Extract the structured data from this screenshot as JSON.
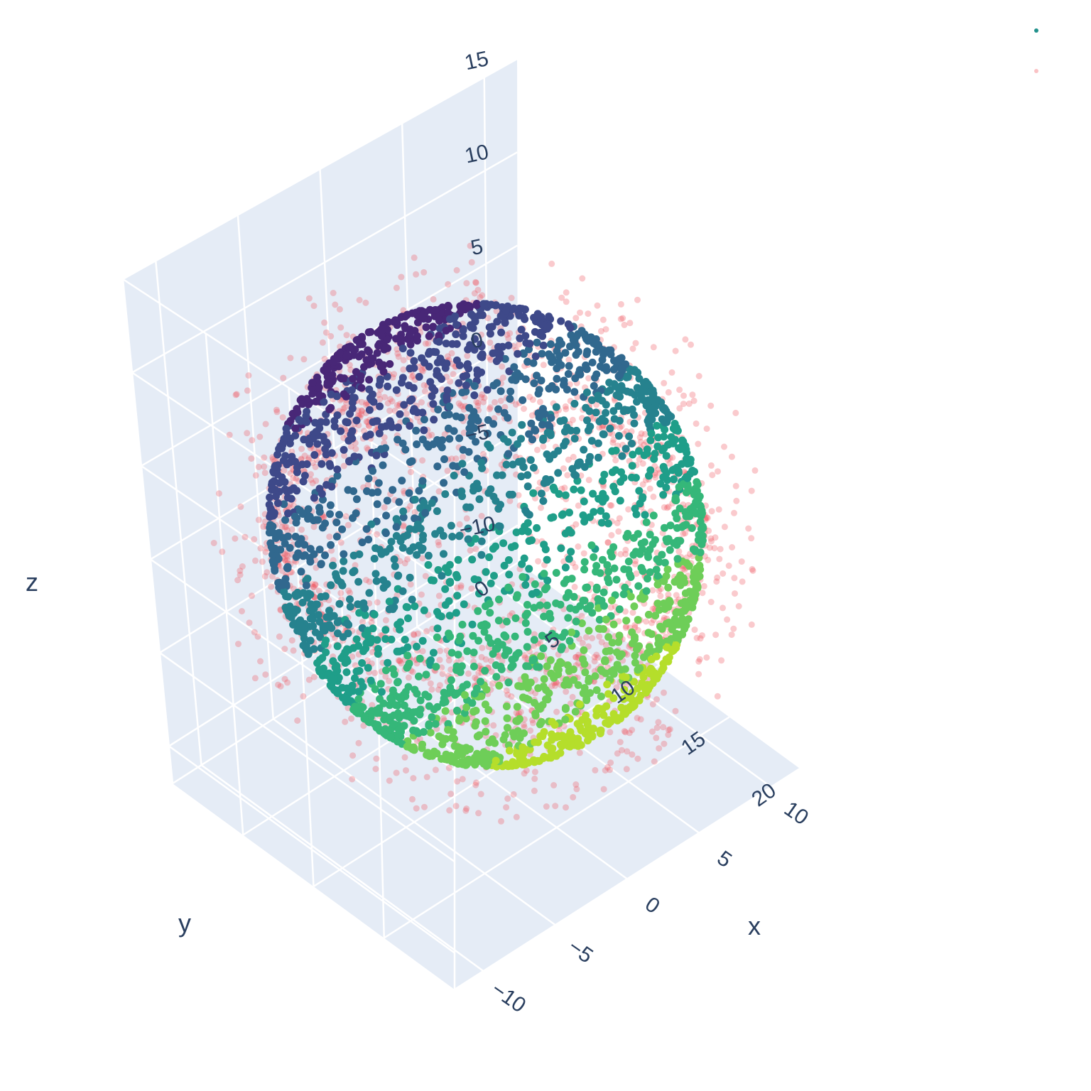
{
  "chart_data": {
    "type": "scatter",
    "projection": "3d",
    "title": "",
    "axes": {
      "x": {
        "title": "x",
        "range": [
          -12,
          12
        ],
        "ticks": [
          -10,
          -5,
          0,
          5,
          10
        ],
        "tick_labels": [
          "−10",
          "−5",
          "0",
          "5",
          "10"
        ]
      },
      "y": {
        "title": "y",
        "range": [
          0,
          20
        ],
        "ticks": [
          0,
          5,
          10,
          15,
          20
        ],
        "tick_labels": [
          "0",
          "5",
          "10",
          "15",
          "20"
        ]
      },
      "z": {
        "title": "z",
        "range": [
          -12,
          15
        ],
        "ticks": [
          -10,
          -5,
          0,
          5,
          10,
          15
        ],
        "tick_labels": [
          "−10",
          "−5",
          "0",
          "5",
          "10",
          "15"
        ]
      }
    },
    "grid": true,
    "background_color": "#e5ecf6",
    "legend_position": "top-right",
    "series": [
      {
        "marker_color": "#21918c",
        "colorscale": "viridis",
        "opacity": 1.0,
        "shape": "sphere",
        "center": {
          "x": 0,
          "y": 10,
          "z": 1
        },
        "radius": 10,
        "approx_points": 2600
      },
      {
        "marker_color": "#f0505a",
        "opacity": 0.3,
        "shape": "scattered shell with dense band",
        "center": {
          "x": 0,
          "y": 10,
          "z": 1
        },
        "radius_range": [
          8,
          13
        ],
        "approx_points": 1800
      }
    ]
  },
  "legend": {
    "items": [
      {
        "color": "#21918c",
        "opacity": 1.0
      },
      {
        "color": "#f0505a",
        "opacity": 0.35
      }
    ]
  }
}
